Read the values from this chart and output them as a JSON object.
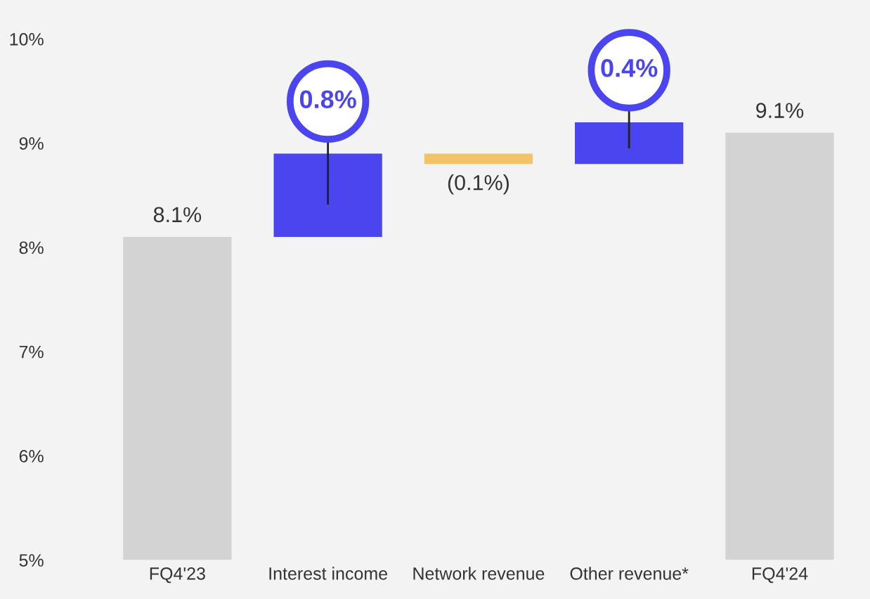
{
  "chart_data": {
    "type": "bar",
    "categories": [
      "FQ4'23",
      "Interest income",
      "Network revenue",
      "Other revenue*",
      "FQ4'24"
    ],
    "values": [
      3.1,
      0.8,
      -0.1,
      0.4,
      4.1
    ],
    "base": [
      5,
      8.1,
      8.9,
      8.8,
      5
    ],
    "colors": [
      "#d3d3d3",
      "#4a45ee",
      "#f2c46a",
      "#4a45ee",
      "#d3d3d3"
    ],
    "value_labels": [
      "8.1%",
      "0.8%",
      "(0.1%)",
      "0.4%",
      "9.1%"
    ],
    "ylim": [
      5,
      10
    ],
    "yticks": [
      {
        "value": 5,
        "label": "5%"
      },
      {
        "value": 6,
        "label": "6%"
      },
      {
        "value": 7,
        "label": "7%"
      },
      {
        "value": 8,
        "label": "8%"
      },
      {
        "value": 9,
        "label": "9%"
      },
      {
        "value": 10,
        "label": "10%"
      }
    ],
    "grid": false,
    "legend": false
  }
}
